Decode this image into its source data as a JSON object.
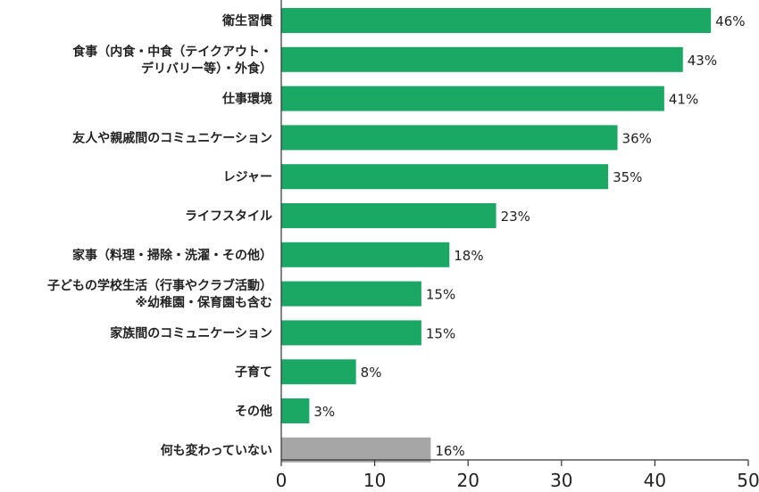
{
  "chart_data": {
    "type": "bar",
    "orientation": "horizontal",
    "title": "",
    "xlabel": "",
    "ylabel": "",
    "xlim": [
      0,
      50
    ],
    "x_ticks": [
      0,
      10,
      20,
      30,
      40,
      50
    ],
    "value_suffix": "%",
    "grid": false,
    "legend": "none",
    "categories": [
      [
        "衛生習慣"
      ],
      [
        "食事（内食・中食（テイクアウト・",
        "デリバリー等）・外食）"
      ],
      [
        "仕事環境"
      ],
      [
        "友人や親戚間のコミュニケーション"
      ],
      [
        "レジャー"
      ],
      [
        "ライフスタイル"
      ],
      [
        "家事（料理・掃除・洗濯・その他）"
      ],
      [
        "子どもの学校生活（行事やクラブ活動）",
        "※幼稚園・保育園も含む"
      ],
      [
        "家族間のコミュニケーション"
      ],
      [
        "子育て"
      ],
      [
        "その他"
      ],
      [
        "何も変わっていない"
      ]
    ],
    "values": [
      46,
      43,
      41,
      36,
      35,
      23,
      18,
      15,
      15,
      8,
      3,
      16
    ],
    "colors": {
      "primary": "#1aa864",
      "neutral": "#a6a6a6"
    },
    "bar_color_keys": [
      "primary",
      "primary",
      "primary",
      "primary",
      "primary",
      "primary",
      "primary",
      "primary",
      "primary",
      "primary",
      "primary",
      "neutral"
    ]
  }
}
